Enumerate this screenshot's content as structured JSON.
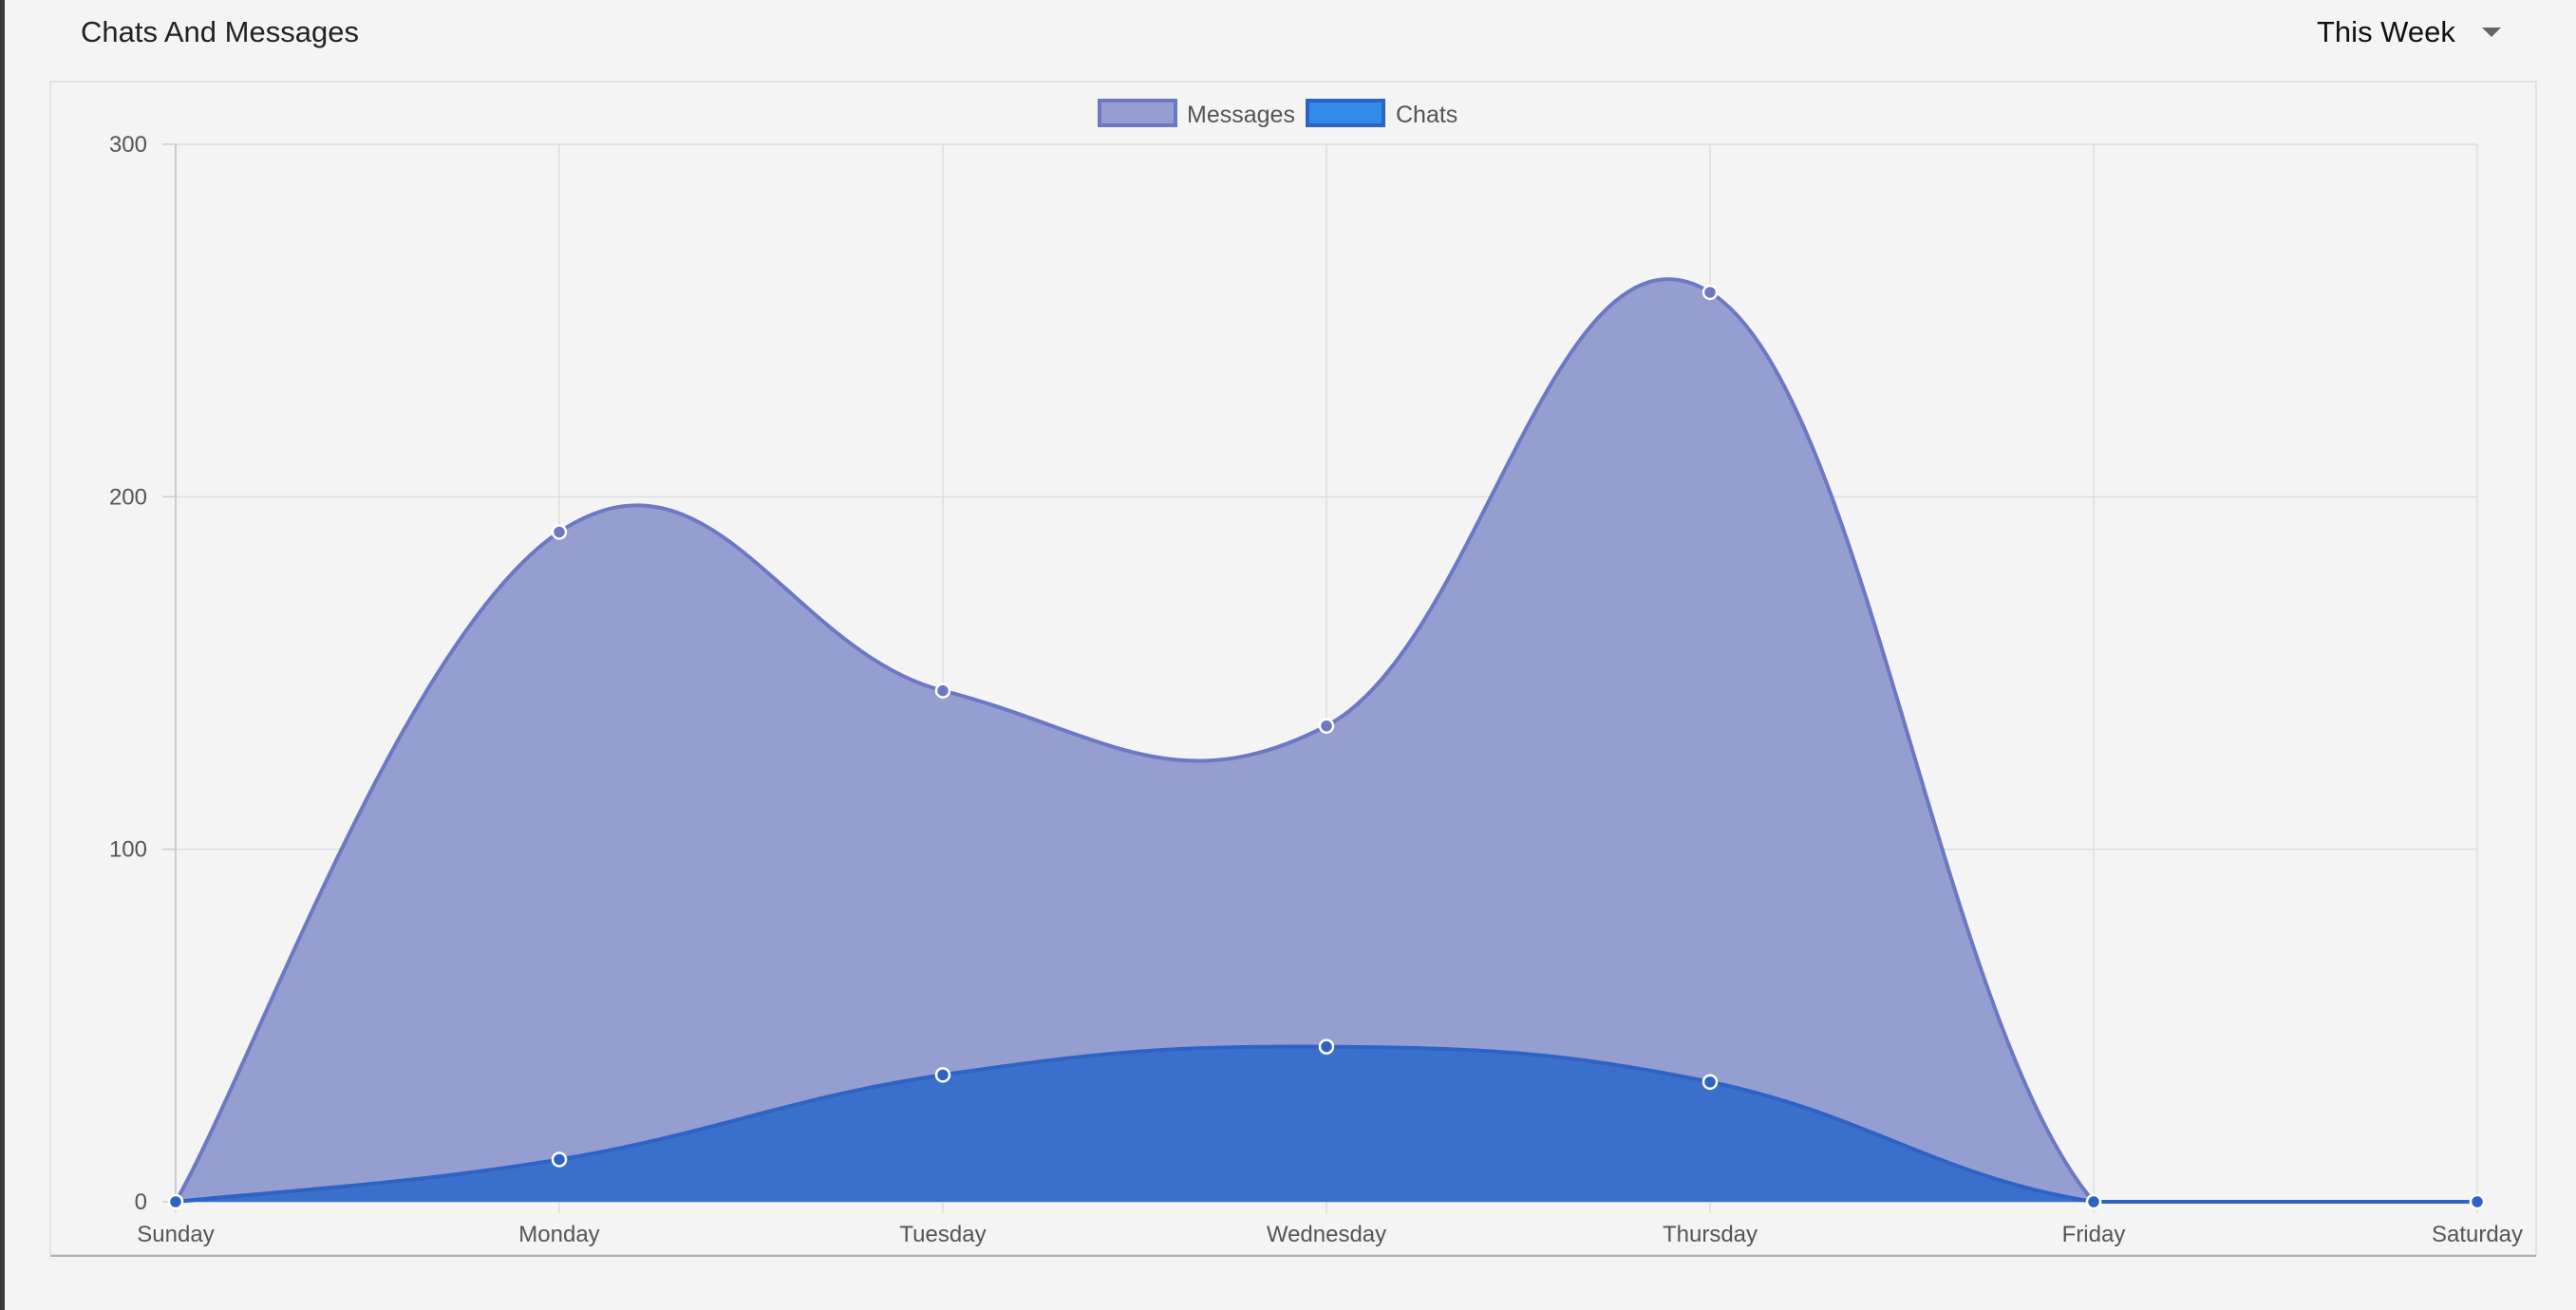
{
  "header": {
    "title": "Chats And Messages",
    "range_selected": "This Week",
    "caret_icon": "caret-down-icon"
  },
  "colors": {
    "messages_fill": "#959ed0",
    "messages_line": "#6c78c4",
    "chats_fill": "#386fcb",
    "chats_line": "#2e63c5",
    "chats_legend": "#2f8be6",
    "grid": "#dddddd",
    "axis": "#cccccc"
  },
  "chart_data": {
    "type": "area",
    "categories": [
      "Sunday",
      "Monday",
      "Tuesday",
      "Wednesday",
      "Thursday",
      "Friday",
      "Saturday"
    ],
    "series": [
      {
        "name": "Messages",
        "values": [
          0,
          190,
          145,
          135,
          258,
          0,
          0
        ]
      },
      {
        "name": "Chats",
        "values": [
          0,
          12,
          36,
          44,
          34,
          0,
          0
        ]
      }
    ],
    "ylim": [
      0,
      300
    ],
    "yticks": [
      0,
      100,
      200,
      300
    ],
    "legend": "top-center",
    "grid": true,
    "title": "",
    "xlabel": "",
    "ylabel": ""
  }
}
